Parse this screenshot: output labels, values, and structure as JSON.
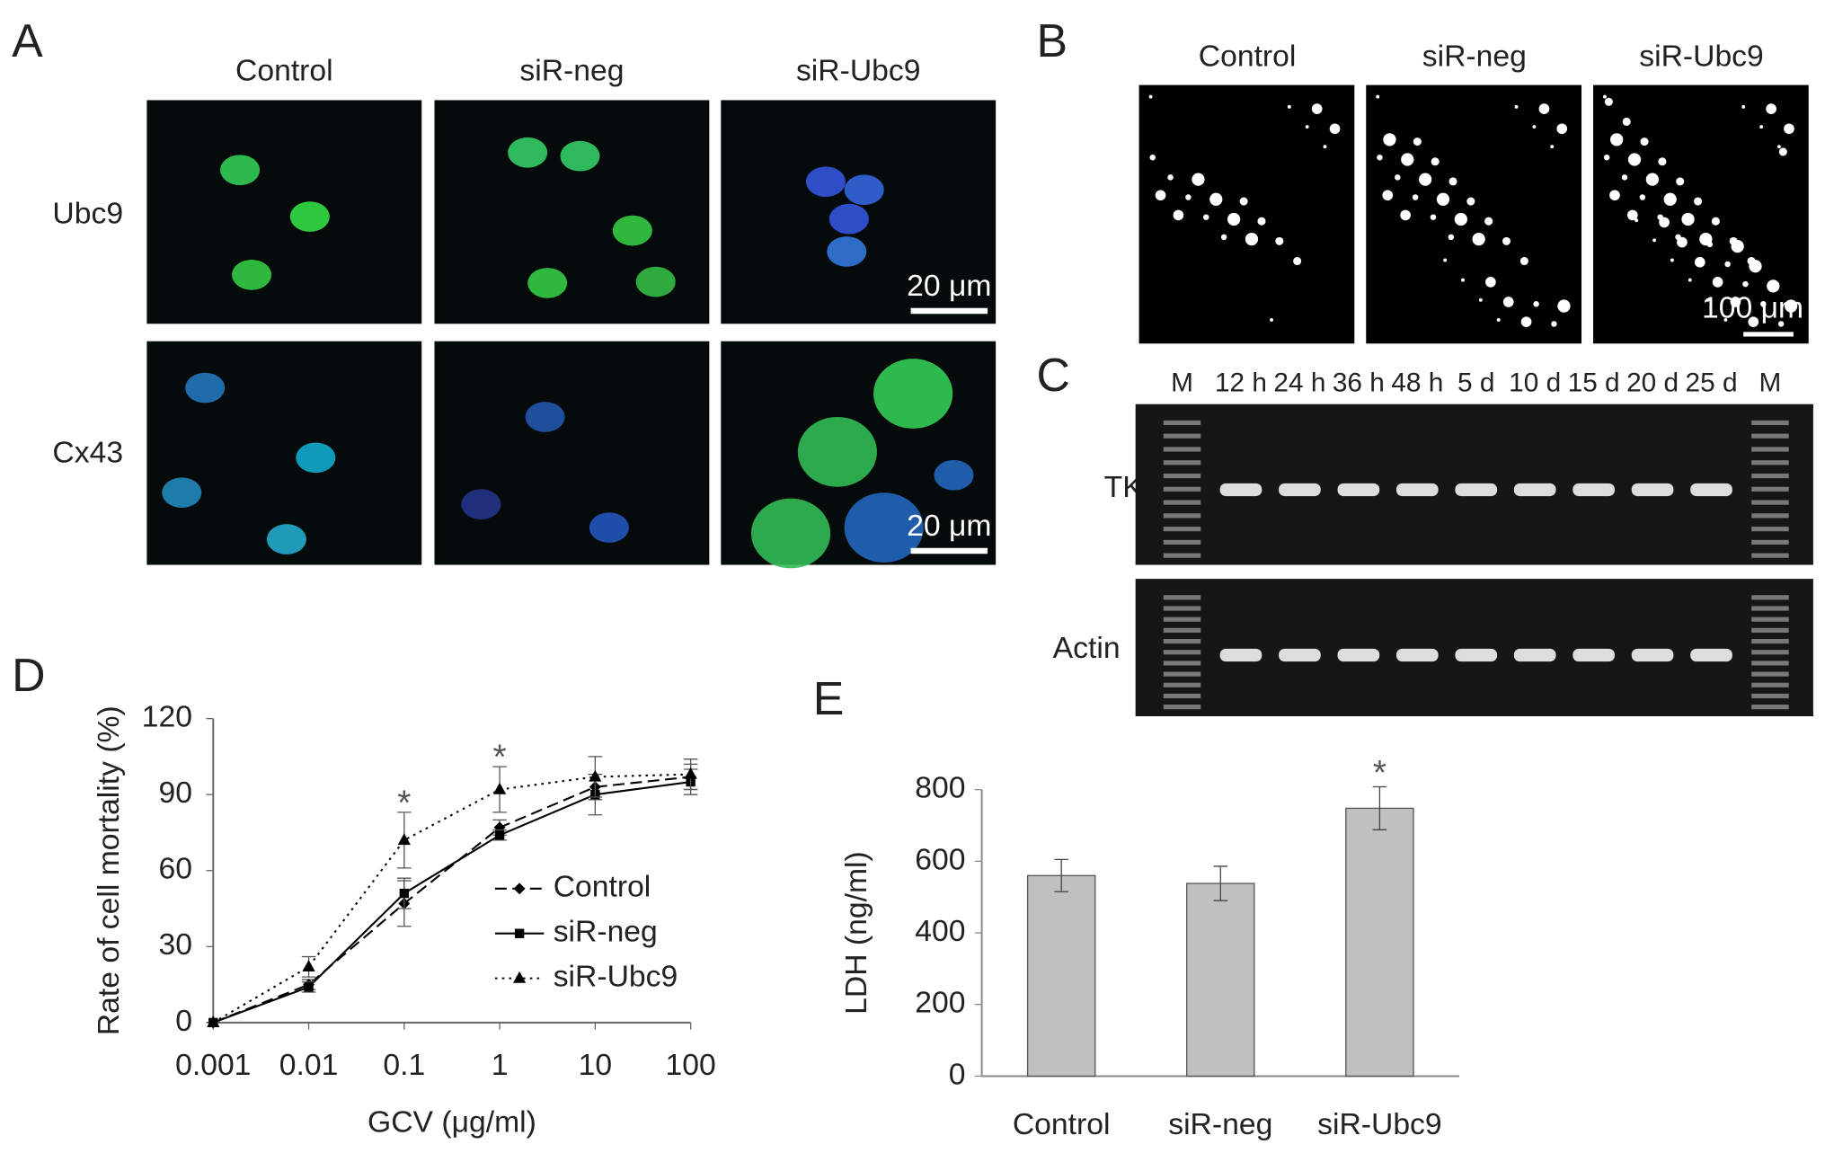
{
  "panels": {
    "A": {
      "label": "A",
      "columns": [
        "Control",
        "siR-neg",
        "siR-Ubc9"
      ],
      "rows": [
        "Ubc9",
        "Cx43"
      ],
      "scale_bars": [
        "20 μm",
        "20 μm"
      ]
    },
    "B": {
      "label": "B",
      "columns": [
        "Control",
        "siR-neg",
        "siR-Ubc9"
      ],
      "scale_bar": "100 μm"
    },
    "C": {
      "label": "C",
      "lanes": [
        "M",
        "12 h",
        "24 h",
        "36 h",
        "48 h",
        "5 d",
        "10 d",
        "15 d",
        "20 d",
        "25 d",
        "M"
      ],
      "rows": [
        "TK",
        "Actin"
      ]
    }
  },
  "chart_data": [
    {
      "type": "line",
      "panel": "D",
      "x": [
        0.001,
        0.01,
        0.1,
        1,
        10,
        100
      ],
      "xlim": [
        0.001,
        100
      ],
      "xticks": [
        0.001,
        0.01,
        0.1,
        1,
        10,
        100
      ],
      "log_x": true,
      "ylim": [
        0,
        120
      ],
      "yticks": [
        0,
        30,
        60,
        90,
        120
      ],
      "xlabel": "GCV (μg/ml)",
      "ylabel": "Rate of cell mortality (%)",
      "series": [
        {
          "name": "Control",
          "color": "#000000",
          "style": "dashed",
          "marker": "diamond",
          "values": [
            0,
            15,
            47,
            77,
            93,
            97
          ],
          "errors": [
            0,
            2,
            9,
            3,
            5,
            5
          ]
        },
        {
          "name": "siR-neg",
          "color": "#000000",
          "style": "solid",
          "marker": "square",
          "values": [
            0,
            14,
            51,
            74,
            90,
            95
          ],
          "errors": [
            0,
            2,
            6,
            2,
            8,
            5
          ]
        },
        {
          "name": "siR-Ubc9",
          "color": "#000000",
          "style": "dotted",
          "marker": "triangle",
          "values": [
            0,
            22,
            72,
            92,
            97,
            98
          ],
          "errors": [
            0,
            4,
            11,
            9,
            8,
            6
          ]
        }
      ],
      "annotations": [
        {
          "text": "*",
          "x": 0.1
        },
        {
          "text": "*",
          "x": 1
        }
      ]
    },
    {
      "type": "bar",
      "panel": "E",
      "categories": [
        "Control",
        "siR-neg",
        "siR-Ubc9"
      ],
      "values": [
        560,
        538,
        748
      ],
      "errors": [
        45,
        48,
        60
      ],
      "color": "#c0c0c0",
      "ylim": [
        0,
        800
      ],
      "yticks": [
        0,
        200,
        400,
        600,
        800
      ],
      "ylabel": "LDH (ng/ml)",
      "annotations": [
        {
          "text": "*",
          "category": 2
        }
      ]
    }
  ]
}
